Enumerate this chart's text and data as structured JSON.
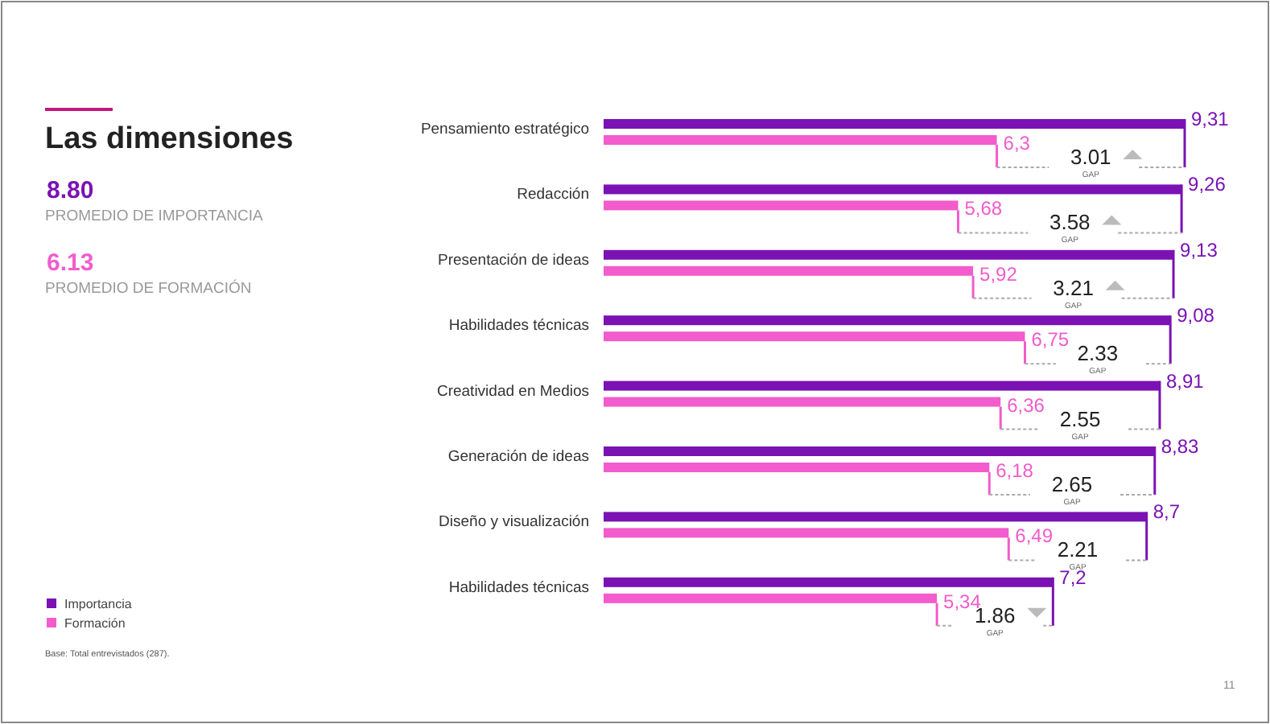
{
  "chart_data": {
    "type": "bar",
    "orientation": "horizontal",
    "title": "Las dimensiones",
    "categories": [
      "Pensamiento estratégico",
      "Redacción",
      "Presentación de ideas",
      "Habilidades técnicas",
      "Creatividad en Medios",
      "Generación de ideas",
      "Diseño y visualización",
      "Habilidades técnicas"
    ],
    "series": [
      {
        "name": "Importancia",
        "color": "#7a12b4",
        "values": [
          9.31,
          9.26,
          9.13,
          9.08,
          8.91,
          8.83,
          8.7,
          7.2
        ],
        "value_labels": [
          "9,31",
          "9,26",
          "9,13",
          "9,08",
          "8,91",
          "8,83",
          "8,7",
          "7,2"
        ]
      },
      {
        "name": "Formación",
        "color": "#f25ccc",
        "values": [
          6.3,
          5.68,
          5.92,
          6.75,
          6.36,
          6.18,
          6.49,
          5.34
        ],
        "value_labels": [
          "6,3",
          "5,68",
          "5,92",
          "6,75",
          "6,36",
          "6,18",
          "6,49",
          "5,34"
        ]
      }
    ],
    "annotations": [
      "3.01",
      "3.58",
      "3.21",
      "2.33",
      "2.55",
      "2.65",
      "2.21",
      "1.86",
      "GAP",
      "8.80",
      "PROMEDIO DE IMPORTANCIA",
      "6.13",
      "PROMEDIO DE FORMACIÓN",
      "Base: Total entrevistados (287).",
      "11"
    ],
    "legend": "bottom left",
    "tick_labels": "y"
  }
}
